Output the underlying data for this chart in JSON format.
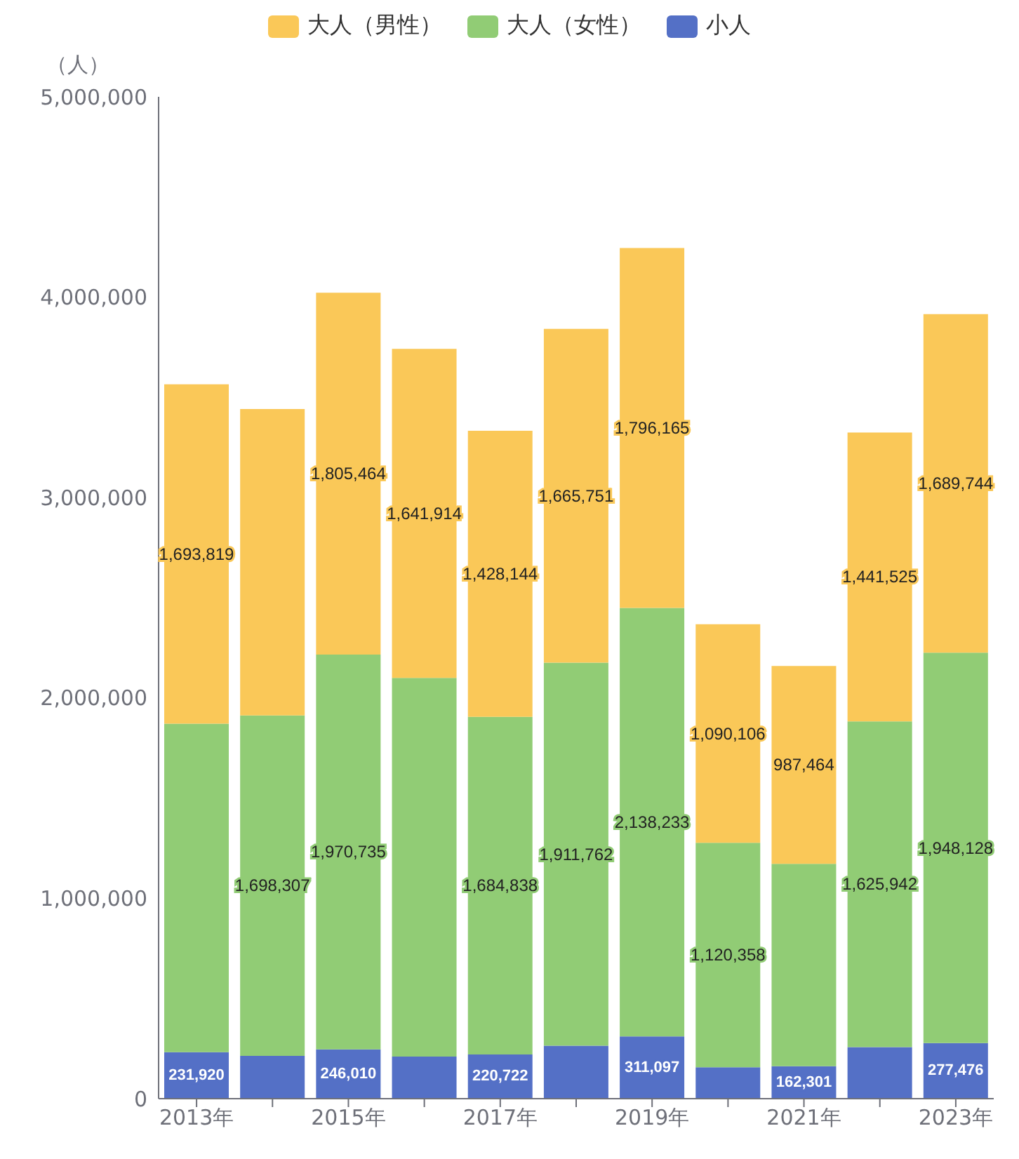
{
  "chart_data": {
    "type": "bar",
    "stacked": true,
    "ylabel": "（人）",
    "categories": [
      "2013年",
      null,
      "2015年",
      null,
      "2017年",
      null,
      "2019年",
      null,
      "2021年",
      null,
      "2023年"
    ],
    "series": [
      {
        "name": "小人",
        "color": "#5470c6",
        "values": [
          231920,
          214000,
          246010,
          210000,
          220722,
          264000,
          311097,
          157000,
          162301,
          257000,
          277476
        ],
        "value_labels": [
          "231,920",
          null,
          "246,010",
          null,
          "220,722",
          null,
          "311,097",
          null,
          "162,301",
          null,
          "277,476"
        ]
      },
      {
        "name": "大人（女性）",
        "color": "#91cc75",
        "values": [
          1640000,
          1698307,
          1970735,
          1890000,
          1684838,
          1911762,
          2138233,
          1120358,
          1010000,
          1625942,
          1948128
        ],
        "value_labels": [
          null,
          "1,698,307",
          "1,970,735",
          null,
          "1,684,838",
          "1,911,762",
          "2,138,233",
          "1,120,358",
          null,
          "1,625,942",
          "1,948,128"
        ]
      },
      {
        "name": "大人（男性）",
        "color": "#fac858",
        "values": [
          1693819,
          1530000,
          1805464,
          1641914,
          1428144,
          1665751,
          1796165,
          1090106,
          987464,
          1441525,
          1689744
        ],
        "value_labels": [
          "1,693,819",
          null,
          "1,805,464",
          "1,641,914",
          "1,428,144",
          "1,665,751",
          "1,796,165",
          "1,090,106",
          "987,464",
          "1,441,525",
          "1,689,744"
        ]
      }
    ],
    "ylim": [
      0,
      5000000
    ],
    "yticks": [
      0,
      {
        "value": 1000000,
        "label": "1,000,000"
      },
      {
        "value": 2000000,
        "label": "2,000,000"
      },
      {
        "value": 3000000,
        "label": "3,000,000"
      },
      {
        "value": 4000000,
        "label": "4,000,000"
      },
      {
        "value": 5000000,
        "label": "5,000,000"
      }
    ],
    "grid": false,
    "legend": "top"
  }
}
